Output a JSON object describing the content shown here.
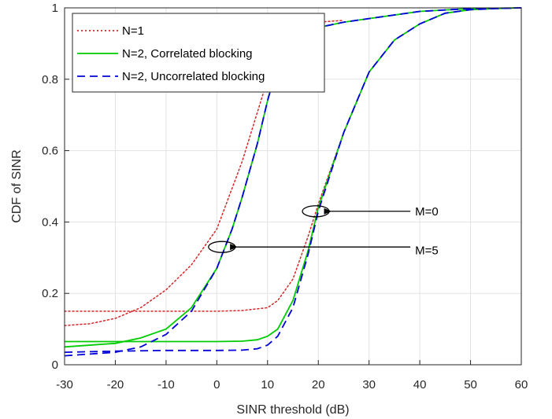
{
  "chart_data": {
    "type": "line",
    "xlabel": "SINR threshold (dB)",
    "ylabel": "CDF of SINR",
    "xlim": [
      -30,
      60
    ],
    "ylim": [
      0,
      1
    ],
    "xticks": [
      -30,
      -20,
      -10,
      0,
      10,
      20,
      30,
      40,
      50,
      60
    ],
    "yticks": [
      0,
      0.2,
      0.4,
      0.6,
      0.8,
      1
    ],
    "ytick_labels": [
      "0",
      "0.2",
      "0.4",
      "0.6",
      "0.8",
      "1"
    ],
    "grid": true,
    "legend_position": "top-left",
    "series": [
      {
        "name": "N=1",
        "color": "#d62728",
        "style": "dotted",
        "curves": [
          {
            "x": [
              -30,
              -25,
              -20,
              -15,
              -10,
              -5,
              0,
              5,
              10,
              15,
              20,
              25
            ],
            "y": [
              0.11,
              0.115,
              0.13,
              0.16,
              0.21,
              0.28,
              0.38,
              0.57,
              0.8,
              0.92,
              0.96,
              0.965
            ]
          },
          {
            "x": [
              -30,
              -20,
              -10,
              0,
              5,
              10,
              12,
              15,
              18,
              20,
              25,
              30,
              35,
              40,
              45,
              50,
              55,
              60
            ],
            "y": [
              0.15,
              0.15,
              0.15,
              0.15,
              0.152,
              0.16,
              0.18,
              0.24,
              0.36,
              0.45,
              0.65,
              0.82,
              0.91,
              0.955,
              0.985,
              0.995,
              0.998,
              1.0
            ]
          }
        ]
      },
      {
        "name": "N=2, Correlated blocking",
        "color": "#00cc00",
        "style": "solid",
        "curves": [
          {
            "x": [
              -30,
              -20,
              -15,
              -10,
              -5,
              0,
              3,
              5,
              8,
              10,
              12,
              15,
              20,
              25,
              30,
              40,
              50,
              60
            ],
            "y": [
              0.05,
              0.06,
              0.075,
              0.1,
              0.16,
              0.27,
              0.38,
              0.47,
              0.62,
              0.74,
              0.84,
              0.9,
              0.945,
              0.96,
              0.97,
              0.99,
              0.998,
              1.0
            ]
          },
          {
            "x": [
              -30,
              -20,
              -10,
              0,
              5,
              8,
              10,
              12,
              15,
              18,
              20,
              25,
              30,
              35,
              40,
              45,
              50,
              55,
              60
            ],
            "y": [
              0.065,
              0.065,
              0.065,
              0.065,
              0.066,
              0.07,
              0.08,
              0.1,
              0.18,
              0.32,
              0.44,
              0.65,
              0.82,
              0.91,
              0.955,
              0.985,
              0.995,
              0.998,
              1.0
            ]
          }
        ]
      },
      {
        "name": "N=2, Uncorrelated blocking",
        "color": "#0000dd",
        "style": "dashed",
        "curves": [
          {
            "x": [
              -30,
              -20,
              -15,
              -10,
              -5,
              0,
              3,
              5,
              8,
              10,
              12,
              15,
              20,
              25,
              30,
              40,
              50,
              60
            ],
            "y": [
              0.025,
              0.035,
              0.05,
              0.085,
              0.15,
              0.27,
              0.38,
              0.47,
              0.62,
              0.74,
              0.84,
              0.9,
              0.945,
              0.96,
              0.97,
              0.99,
              0.998,
              1.0
            ]
          },
          {
            "x": [
              -30,
              -20,
              -10,
              0,
              5,
              8,
              10,
              12,
              15,
              18,
              20,
              25,
              30,
              35,
              40,
              45,
              50,
              55,
              60
            ],
            "y": [
              0.035,
              0.038,
              0.04,
              0.04,
              0.041,
              0.045,
              0.055,
              0.08,
              0.16,
              0.31,
              0.43,
              0.65,
              0.82,
              0.91,
              0.955,
              0.985,
              0.995,
              0.998,
              1.0
            ]
          }
        ]
      }
    ],
    "annotations": [
      {
        "label": "M=0",
        "ellipse_at": [
          19.5,
          0.43
        ],
        "arrow_to": [
          22.5,
          0.43
        ],
        "text_at": [
          40,
          0.43
        ]
      },
      {
        "label": "M=5",
        "ellipse_at": [
          1,
          0.33
        ],
        "arrow_to": [
          4,
          0.33
        ],
        "text_at": [
          40,
          0.32
        ]
      }
    ]
  }
}
